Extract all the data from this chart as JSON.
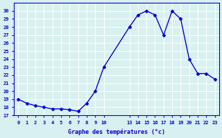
{
  "x": [
    0,
    1,
    2,
    3,
    4,
    5,
    6,
    7,
    8,
    9,
    10,
    13,
    14,
    15,
    16,
    17,
    18,
    19,
    20,
    21,
    22,
    23
  ],
  "y": [
    19,
    18.5,
    18.2,
    18.0,
    17.8,
    17.8,
    17.7,
    17.5,
    18.5,
    20.0,
    23.0,
    28.0,
    29.5,
    30.0,
    29.5,
    27.0,
    30.0,
    29.0,
    24.0,
    22.2,
    22.2,
    21.5
  ],
  "xlabel": "Graphe des températures (°c)",
  "ylim": [
    17,
    31
  ],
  "xlim": [
    -0.5,
    23.5
  ],
  "yticks": [
    17,
    18,
    19,
    20,
    21,
    22,
    23,
    24,
    25,
    26,
    27,
    28,
    29,
    30
  ],
  "xticks": [
    0,
    1,
    2,
    3,
    4,
    5,
    6,
    7,
    8,
    9,
    10,
    13,
    14,
    15,
    16,
    17,
    18,
    19,
    20,
    21,
    22,
    23
  ],
  "line_color": "#0000cc",
  "marker_color": "#0000cc",
  "bg_color": "#d8f0f0",
  "grid_color": "#ffffff",
  "title_color": "#0000cc",
  "label_color": "#0000cc"
}
